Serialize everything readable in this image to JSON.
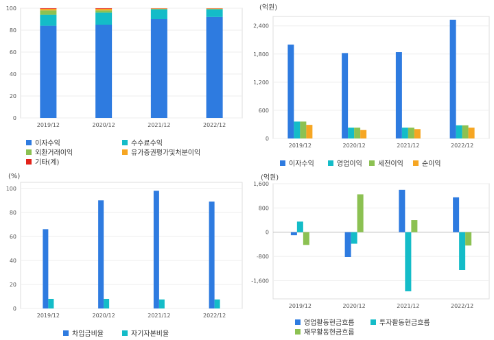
{
  "chart_data": [
    {
      "type": "bar",
      "stacked": true,
      "title": "",
      "unit": "",
      "categories": [
        "2019/12",
        "2020/12",
        "2021/12",
        "2022/12"
      ],
      "ylim": [
        0,
        100
      ],
      "yticks": [
        0,
        20,
        40,
        60,
        80,
        100
      ],
      "grid": true,
      "legend_position": "bottom",
      "series": [
        {
          "name": "이자수익",
          "color": "#2e7be0",
          "values": [
            84,
            85,
            90,
            92
          ]
        },
        {
          "name": "수수료수익",
          "color": "#14bcc8",
          "values": [
            10,
            11,
            9,
            7
          ]
        },
        {
          "name": "외환거래이익",
          "color": "#8cc152",
          "values": [
            4,
            2,
            0.5,
            0.5
          ]
        },
        {
          "name": "유가증권평가및처분이익",
          "color": "#f6a623",
          "values": [
            1.5,
            1.5,
            0.3,
            0.3
          ]
        },
        {
          "name": "기타(계)",
          "color": "#e2231a",
          "values": [
            0.5,
            0.5,
            0.2,
            0.2
          ]
        }
      ]
    },
    {
      "type": "bar",
      "title": "",
      "unit": "(억원)",
      "categories": [
        "2019/12",
        "2020/12",
        "2021/12",
        "2022/12"
      ],
      "ylim": [
        0,
        2600
      ],
      "yticks": [
        0,
        600,
        1200,
        1800,
        2400
      ],
      "ytick_labels": [
        "0",
        "600",
        "1,200",
        "1,800",
        "2,400"
      ],
      "grid": true,
      "legend_position": "bottom",
      "series": [
        {
          "name": "이자수익",
          "color": "#2e7be0",
          "values": [
            2000,
            1820,
            1840,
            2530
          ]
        },
        {
          "name": "영업이익",
          "color": "#14bcc8",
          "values": [
            360,
            230,
            230,
            280
          ]
        },
        {
          "name": "세전이익",
          "color": "#8cc152",
          "values": [
            360,
            230,
            230,
            280
          ]
        },
        {
          "name": "순이익",
          "color": "#f6a623",
          "values": [
            290,
            180,
            200,
            230
          ]
        }
      ]
    },
    {
      "type": "bar",
      "title": "",
      "unit": "(%)",
      "categories": [
        "2019/12",
        "2020/12",
        "2021/12",
        "2022/12"
      ],
      "ylim": [
        0,
        105
      ],
      "yticks": [
        0,
        20,
        40,
        60,
        80,
        100
      ],
      "grid": true,
      "legend_position": "bottom",
      "series": [
        {
          "name": "차입금비율",
          "color": "#2e7be0",
          "values": [
            66,
            90,
            98,
            89
          ]
        },
        {
          "name": "자기자본비율",
          "color": "#14bcc8",
          "values": [
            8,
            8,
            7.5,
            7.5
          ]
        }
      ]
    },
    {
      "type": "bar",
      "title": "",
      "unit": "(억원)",
      "categories": [
        "2019/12",
        "2020/12",
        "2021/12",
        "2022/12"
      ],
      "ylim": [
        -2200,
        1600
      ],
      "yticks": [
        -1600,
        -800,
        0,
        800,
        1600
      ],
      "ytick_labels": [
        "-1,600",
        "-800",
        "0",
        "800",
        "1,600"
      ],
      "grid": true,
      "legend_position": "bottom",
      "series": [
        {
          "name": "영업활동현금흐름",
          "color": "#2e7be0",
          "values": [
            -100,
            -820,
            1400,
            1150
          ]
        },
        {
          "name": "투자활동현금흐름",
          "color": "#14bcc8",
          "values": [
            350,
            -380,
            -1950,
            -1250
          ]
        },
        {
          "name": "재무활동현금흐름",
          "color": "#8cc152",
          "values": [
            -420,
            1250,
            400,
            -440
          ]
        }
      ]
    }
  ]
}
